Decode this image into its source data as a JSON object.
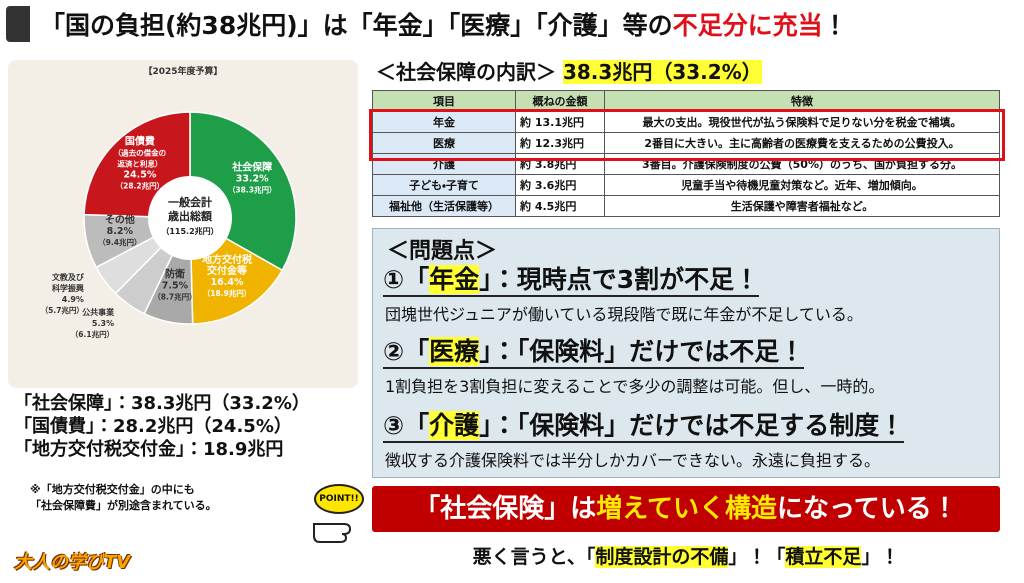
{
  "title": {
    "parts": [
      "「国の負担(約38兆円)」は「年金」「医療」「介護」等の",
      "不足分に充当",
      "！"
    ]
  },
  "chart_data": {
    "type": "pie",
    "caption": "【2025年度予算】",
    "center_lines": [
      "一般会計",
      "歳出総額",
      "（115.2兆円）"
    ],
    "categories": [
      "社会保障",
      "地方交付税\n交付金等",
      "防衛",
      "公共事業",
      "文教及び\n科学振興",
      "その他",
      "国債費\n（過去の借金の\n返済と利息）"
    ],
    "values": [
      33.2,
      16.4,
      7.5,
      5.3,
      4.9,
      8.2,
      24.5
    ],
    "value_labels": [
      "33.2%",
      "16.4%",
      "7.5%",
      "5.3%",
      "4.9%",
      "8.2%",
      "24.5%"
    ],
    "amount_labels": [
      "（38.3兆円）",
      "（18.9兆円）",
      "（8.7兆円）",
      "（6.1兆円）",
      "（5.7兆円）",
      "（9.4兆円）",
      "（28.2兆円）"
    ],
    "colors": [
      "#1f9e4a",
      "#f0b400",
      "#a9a9a9",
      "#cdcdcd",
      "#dedede",
      "#bcbcbc",
      "#c8161d"
    ]
  },
  "summary": [
    "「社会保障」：38.3兆円（33.2%）",
    "「国債費」：28.2兆円（24.5%）",
    "「地方交付税交付金」：18.9兆円"
  ],
  "note": [
    "※「地方交付税交付金」の中にも",
    "「社会保障費」が別途含まれている。"
  ],
  "point": "POINT!!",
  "logo": "大人の学びTV",
  "breakdown": {
    "heading": "＜社会保障の内訳＞",
    "highlight": "38.3兆円（33.2%）",
    "table": {
      "header": [
        "項目",
        "概ねの金額",
        "特徴"
      ],
      "rows": [
        [
          "年金",
          "約 13.1兆円",
          "最大の支出。現役世代が払う保険料で足りない分を税金で補填。"
        ],
        [
          "医療",
          "約 12.3兆円",
          "2番目に大きい。主に高齢者の医療費を支えるための公費投入。"
        ],
        [
          "介護",
          "約 3.8兆円",
          "3番目。介護保険制度の公費（50%）のうち、国が負担する分。"
        ],
        [
          "子ども・子育て",
          "約 3.6兆円",
          "児童手当や待機児童対策など。近年、増加傾向。"
        ],
        [
          "福祉他（生活保護等）",
          "約 4.5兆円",
          "生活保護や障害者福祉など。"
        ]
      ]
    }
  },
  "problems": {
    "heading": "＜問題点＞",
    "items": [
      {
        "title": [
          "①「",
          "年金",
          "」：現時点で3割が不足！"
        ],
        "text": "団塊世代ジュニアが働いている現段階で既に年金が不足している。"
      },
      {
        "title": [
          "②「",
          "医療",
          "」：「保険料」だけでは不足！"
        ],
        "text": "1割負担を3割負担に変えることで多少の調整は可能。但し、一時的。"
      },
      {
        "title": [
          "③「",
          "介護",
          "」：「保険料」だけでは不足する制度！"
        ],
        "text": "徴収する介護保険料では半分しかカバーできない。永遠に負担する。"
      }
    ]
  },
  "banner": [
    "「社会保険」は",
    "増えていく構造",
    "になっている！"
  ],
  "closing": [
    "悪く言うと、「",
    "制度設計の不備",
    "」！「",
    "積立不足",
    "」！"
  ]
}
